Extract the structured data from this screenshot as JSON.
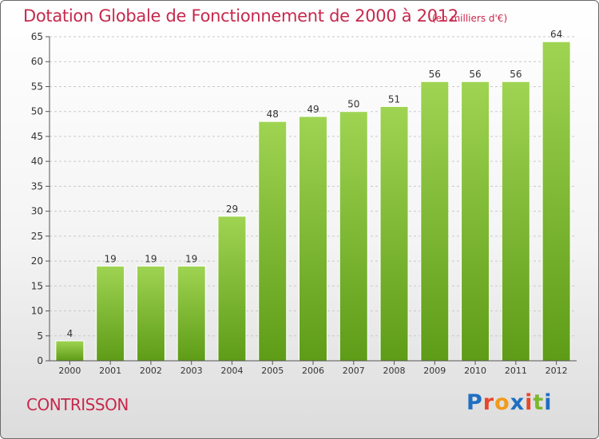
{
  "page": {
    "commune": "CONTRISSON",
    "logo": "Proxiti"
  },
  "chart_data": {
    "type": "bar",
    "title": "Dotation Globale de Fonctionnement de 2000 à 2012",
    "subtitle": "(en milliers d'€)",
    "categories": [
      "2000",
      "2001",
      "2002",
      "2003",
      "2004",
      "2005",
      "2006",
      "2007",
      "2008",
      "2009",
      "2010",
      "2011",
      "2012"
    ],
    "values": [
      4,
      19,
      19,
      19,
      29,
      48,
      49,
      50,
      51,
      56,
      56,
      56,
      64
    ],
    "ylim": [
      0,
      65
    ],
    "yticks": [
      0,
      5,
      10,
      15,
      20,
      25,
      30,
      35,
      40,
      45,
      50,
      55,
      60,
      65
    ],
    "grid": true,
    "bar_color": "#7ab82e",
    "title_color": "#c8284c"
  }
}
